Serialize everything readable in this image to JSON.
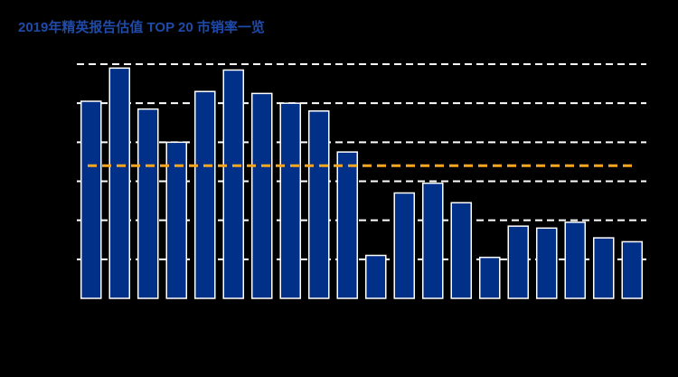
{
  "chart_data": {
    "type": "bar",
    "title": "2019年精英报告估值 TOP 20 市销率一览",
    "categories": [
      null,
      null,
      null,
      null,
      null,
      null,
      null,
      null,
      null,
      null,
      null,
      null,
      null,
      null,
      null,
      null,
      null,
      null,
      null,
      null
    ],
    "values": [
      10.1,
      11.8,
      9.7,
      8.0,
      10.6,
      11.7,
      10.5,
      10.0,
      9.6,
      7.5,
      2.2,
      5.4,
      5.9,
      4.9,
      2.1,
      3.7,
      3.6,
      3.9,
      3.1,
      2.9
    ],
    "color": "#003087",
    "ylim": [
      0,
      12
    ],
    "yticks": [
      2,
      4,
      6,
      8,
      10,
      12
    ],
    "grid": true,
    "reference_line": {
      "value": 6.8,
      "color": "#f5a623"
    }
  }
}
